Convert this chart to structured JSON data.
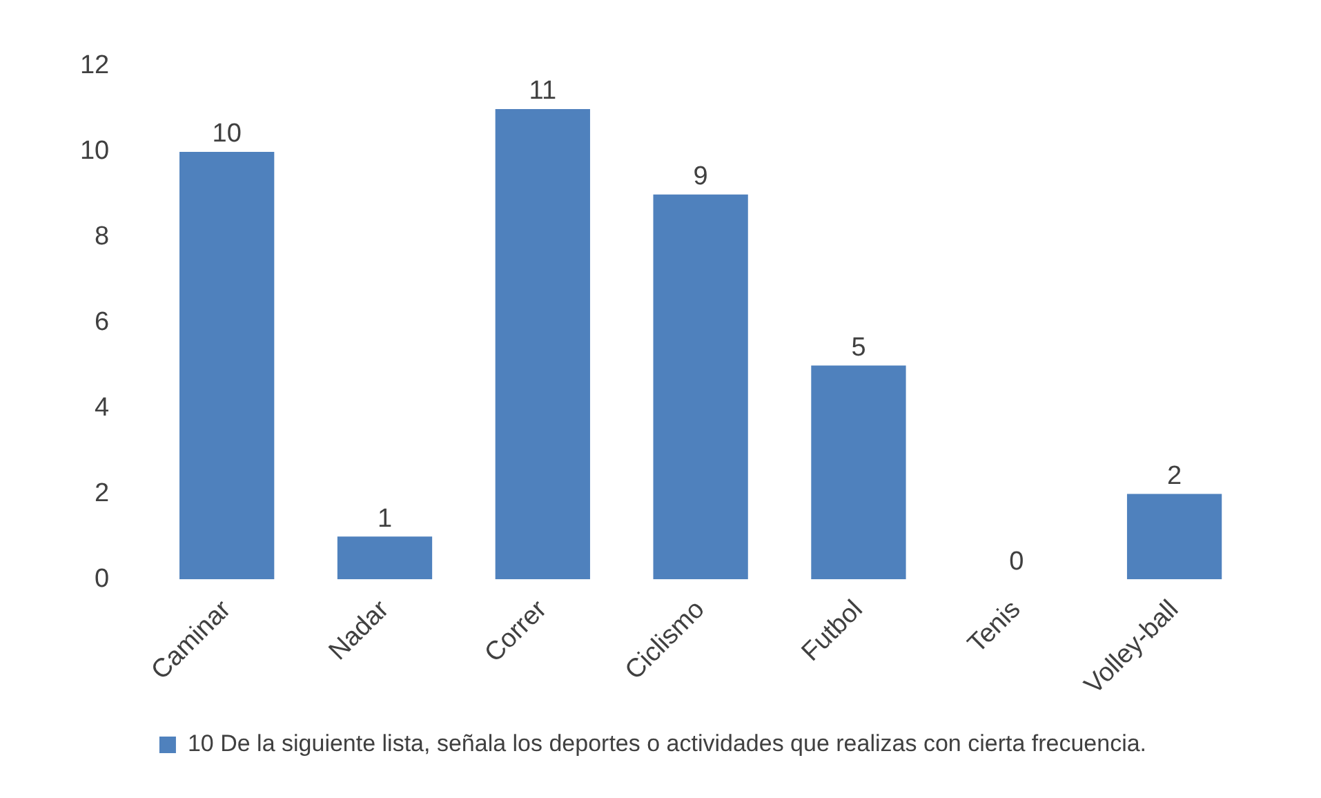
{
  "chart_data": {
    "type": "bar",
    "categories": [
      "Caminar",
      "Nadar",
      "Correr",
      "Ciclismo",
      "Futbol",
      "Tenis",
      "Volley-ball"
    ],
    "series": [
      {
        "name": "10 De la siguiente lista, señala los deportes o actividades que realizas con cierta frecuencia.",
        "color": "#4f81bd",
        "values": [
          10,
          1,
          11,
          9,
          5,
          0,
          2
        ]
      }
    ],
    "ylim": [
      0,
      12
    ],
    "yticks": [
      0,
      2,
      4,
      6,
      8,
      10,
      12
    ],
    "grid": false,
    "legend": "bottom",
    "data_labels": true
  }
}
